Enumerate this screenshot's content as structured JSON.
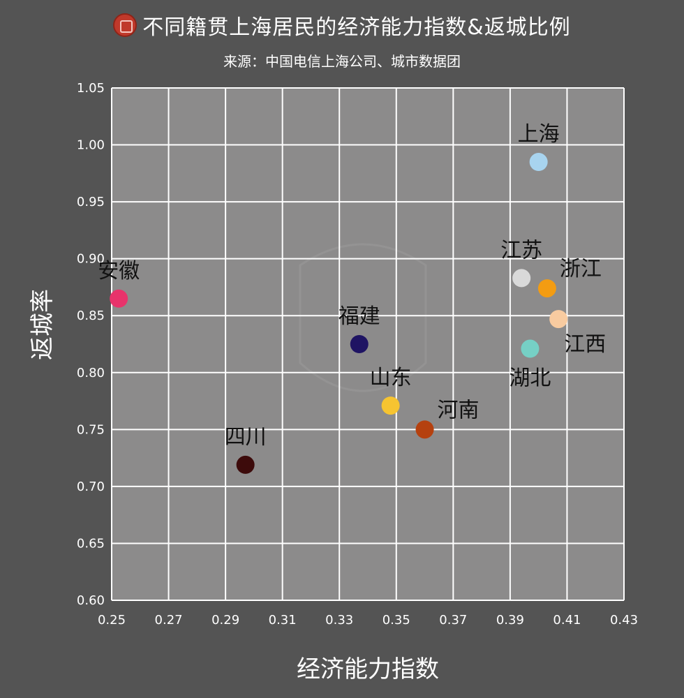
{
  "header": {
    "title": "不同籍贯上海居民的经济能力指数&返城比例",
    "source": "来源：中国电信上海公司、城市数据团",
    "logo_icon": "red-seal-logo-icon"
  },
  "colors": {
    "background": "#545454",
    "plot_area": "#8c8b8b",
    "grid": "#ffffff"
  },
  "chart_data": {
    "type": "scatter",
    "xlabel": "经济能力指数",
    "ylabel": "返城率",
    "xlim": [
      0.25,
      0.43
    ],
    "ylim": [
      0.6,
      1.05
    ],
    "xticks": [
      "0.25",
      "0.27",
      "0.29",
      "0.31",
      "0.33",
      "0.35",
      "0.37",
      "0.39",
      "0.41",
      "0.43"
    ],
    "yticks": [
      "0.60",
      "0.65",
      "0.70",
      "0.75",
      "0.80",
      "0.85",
      "0.90",
      "0.95",
      "1.00",
      "1.05"
    ],
    "grid": true,
    "points": [
      {
        "label": "上海",
        "x": 0.4,
        "y": 0.985,
        "color": "#a8d4ef",
        "label_pos": "above"
      },
      {
        "label": "江苏",
        "x": 0.394,
        "y": 0.883,
        "color": "#d9d9d9",
        "label_pos": "above"
      },
      {
        "label": "浙江",
        "x": 0.403,
        "y": 0.874,
        "color": "#f39c12",
        "label_pos": "above-right"
      },
      {
        "label": "江西",
        "x": 0.407,
        "y": 0.847,
        "color": "#f8cba0",
        "label_pos": "below-right"
      },
      {
        "label": "湖北",
        "x": 0.397,
        "y": 0.821,
        "color": "#76d0c5",
        "label_pos": "below"
      },
      {
        "label": "安徽",
        "x": 0.2525,
        "y": 0.865,
        "color": "#e8336b",
        "label_pos": "above"
      },
      {
        "label": "福建",
        "x": 0.337,
        "y": 0.825,
        "color": "#1f1463",
        "label_pos": "above"
      },
      {
        "label": "山东",
        "x": 0.348,
        "y": 0.771,
        "color": "#f6c431",
        "label_pos": "above"
      },
      {
        "label": "河南",
        "x": 0.36,
        "y": 0.75,
        "color": "#b5410f",
        "label_pos": "above-right"
      },
      {
        "label": "四川",
        "x": 0.297,
        "y": 0.719,
        "color": "#3d0b0b",
        "label_pos": "above"
      }
    ]
  }
}
